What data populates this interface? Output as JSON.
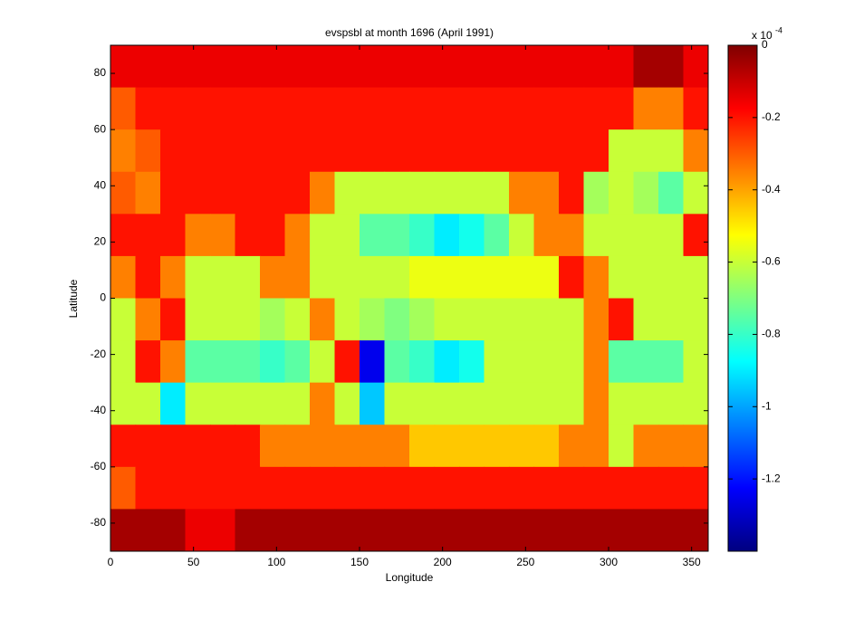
{
  "chart_data": {
    "type": "contour",
    "title": "evspsbl at month 1696 (April 1991)",
    "x_label": "Longitude",
    "y_label": "Latitude",
    "colorbar_scale": "x 10",
    "colorbar_exponent": "-4",
    "x": [
      7.5,
      22.5,
      37.5,
      52.5,
      67.5,
      82.5,
      97.5,
      112.5,
      127.5,
      142.5,
      157.5,
      172.5,
      187.5,
      202.5,
      217.5,
      232.5,
      247.5,
      262.5,
      277.5,
      292.5,
      307.5,
      322.5,
      337.5,
      352.5
    ],
    "y": [
      82.5,
      67.5,
      52.5,
      37.5,
      22.5,
      7.5,
      -7.5,
      -22.5,
      -37.5,
      -52.5,
      -67.5,
      -82.5
    ],
    "values": [
      [
        -0.15,
        -0.15,
        -0.15,
        -0.15,
        -0.15,
        -0.15,
        -0.15,
        -0.15,
        -0.15,
        -0.15,
        -0.15,
        -0.15,
        -0.15,
        -0.15,
        -0.15,
        -0.15,
        -0.15,
        -0.15,
        -0.15,
        -0.15,
        -0.15,
        -0.05,
        -0.05,
        -0.15
      ],
      [
        -0.3,
        -0.2,
        -0.2,
        -0.2,
        -0.2,
        -0.2,
        -0.2,
        -0.2,
        -0.2,
        -0.2,
        -0.2,
        -0.2,
        -0.2,
        -0.2,
        -0.2,
        -0.2,
        -0.2,
        -0.2,
        -0.2,
        -0.2,
        -0.2,
        -0.35,
        -0.35,
        -0.2
      ],
      [
        -0.35,
        -0.3,
        -0.2,
        -0.2,
        -0.2,
        -0.2,
        -0.2,
        -0.2,
        -0.2,
        -0.2,
        -0.2,
        -0.2,
        -0.2,
        -0.2,
        -0.2,
        -0.2,
        -0.2,
        -0.2,
        -0.2,
        -0.2,
        -0.6,
        -0.6,
        -0.6,
        -0.35
      ],
      [
        -0.3,
        -0.35,
        -0.2,
        -0.2,
        -0.2,
        -0.2,
        -0.2,
        -0.2,
        -0.35,
        -0.6,
        -0.6,
        -0.6,
        -0.6,
        -0.6,
        -0.6,
        -0.6,
        -0.35,
        -0.35,
        -0.2,
        -0.65,
        -0.6,
        -0.65,
        -0.75,
        -0.6
      ],
      [
        -0.2,
        -0.2,
        -0.2,
        -0.35,
        -0.35,
        -0.2,
        -0.2,
        -0.35,
        -0.6,
        -0.6,
        -0.75,
        -0.75,
        -0.8,
        -0.9,
        -0.85,
        -0.75,
        -0.6,
        -0.35,
        -0.35,
        -0.6,
        -0.6,
        -0.6,
        -0.6,
        -0.2
      ],
      [
        -0.35,
        -0.2,
        -0.35,
        -0.6,
        -0.6,
        -0.6,
        -0.35,
        -0.35,
        -0.6,
        -0.6,
        -0.6,
        -0.6,
        -0.55,
        -0.55,
        -0.55,
        -0.55,
        -0.55,
        -0.55,
        -0.2,
        -0.35,
        -0.6,
        -0.6,
        -0.6,
        -0.6
      ],
      [
        -0.6,
        -0.35,
        -0.2,
        -0.6,
        -0.6,
        -0.6,
        -0.65,
        -0.6,
        -0.35,
        -0.6,
        -0.65,
        -0.7,
        -0.65,
        -0.6,
        -0.6,
        -0.6,
        -0.6,
        -0.6,
        -0.6,
        -0.35,
        -0.2,
        -0.6,
        -0.6,
        -0.6
      ],
      [
        -0.6,
        -0.2,
        -0.35,
        -0.75,
        -0.75,
        -0.75,
        -0.8,
        -0.75,
        -0.6,
        -0.2,
        -1.25,
        -0.75,
        -0.8,
        -0.9,
        -0.85,
        -0.6,
        -0.6,
        -0.6,
        -0.6,
        -0.35,
        -0.75,
        -0.75,
        -0.75,
        -0.6
      ],
      [
        -0.6,
        -0.6,
        -0.9,
        -0.6,
        -0.6,
        -0.6,
        -0.6,
        -0.6,
        -0.35,
        -0.6,
        -0.95,
        -0.6,
        -0.6,
        -0.6,
        -0.6,
        -0.6,
        -0.6,
        -0.6,
        -0.6,
        -0.35,
        -0.6,
        -0.6,
        -0.6,
        -0.6
      ],
      [
        -0.2,
        -0.2,
        -0.2,
        -0.2,
        -0.2,
        -0.2,
        -0.35,
        -0.35,
        -0.35,
        -0.35,
        -0.35,
        -0.35,
        -0.45,
        -0.45,
        -0.45,
        -0.45,
        -0.45,
        -0.45,
        -0.35,
        -0.35,
        -0.6,
        -0.35,
        -0.35,
        -0.35
      ],
      [
        -0.3,
        -0.2,
        -0.2,
        -0.2,
        -0.2,
        -0.2,
        -0.2,
        -0.2,
        -0.2,
        -0.2,
        -0.2,
        -0.2,
        -0.2,
        -0.2,
        -0.2,
        -0.2,
        -0.2,
        -0.2,
        -0.2,
        -0.2,
        -0.2,
        -0.2,
        -0.2,
        -0.2
      ],
      [
        -0.05,
        -0.05,
        -0.05,
        -0.15,
        -0.15,
        -0.05,
        -0.05,
        -0.05,
        -0.05,
        -0.05,
        -0.05,
        -0.05,
        -0.05,
        -0.05,
        -0.05,
        -0.05,
        -0.05,
        -0.05,
        -0.05,
        -0.05,
        -0.05,
        -0.05,
        -0.05,
        -0.05
      ]
    ],
    "xlim": [
      0,
      360
    ],
    "xticks": [
      0,
      50,
      100,
      150,
      200,
      250,
      300,
      350
    ],
    "ylim": [
      -90,
      90
    ],
    "yticks": [
      -80,
      -60,
      -40,
      -20,
      0,
      20,
      40,
      60,
      80
    ],
    "clim": [
      -1.4,
      0
    ],
    "cticks": [
      -1.2,
      -1,
      -0.8,
      -0.6,
      -0.4,
      -0.2,
      0
    ],
    "colormap": "jet"
  }
}
